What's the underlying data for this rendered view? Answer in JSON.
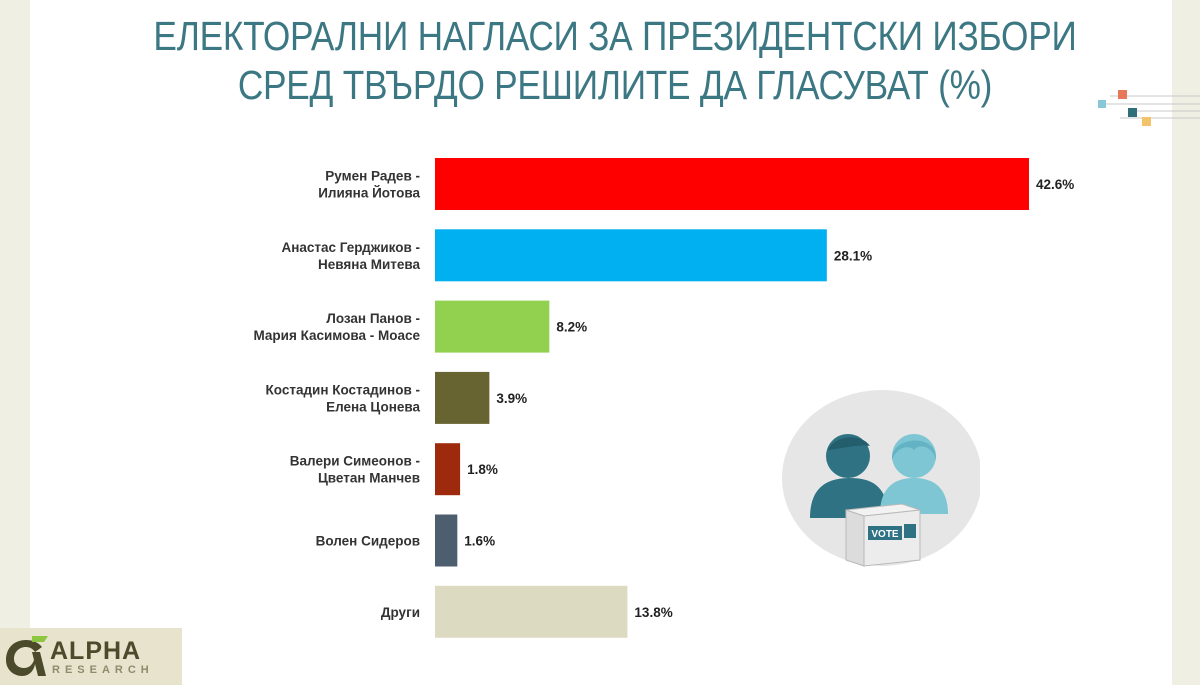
{
  "header": {
    "title_line1": "ЕЛЕКТОРАЛНИ НАГЛАСИ ЗА ПРЕЗИДЕНТСКИ ИЗБОРИ",
    "title_line2": "СРЕД ТВЪРДО РЕШИЛИТЕ ДА ГЛАСУВАТ (%)"
  },
  "chart_data": {
    "type": "bar",
    "orientation": "horizontal",
    "title": "ЕЛЕКТОРАЛНИ НАГЛАСИ ЗА ПРЕЗИДЕНТСКИ ИЗБОРИ СРЕД ТВЪРДО РЕШИЛИТЕ ДА ГЛАСУВАТ (%)",
    "categories": [
      [
        "Румен Радев -",
        "Илияна Йотова"
      ],
      [
        "Анастас Герджиков -",
        "Невяна Митева"
      ],
      [
        "Лозан Панов -",
        "Мария Касимова - Моасе"
      ],
      [
        "Костадин Костадинов -",
        "Елена Цонева"
      ],
      [
        "Валери Симеонов -",
        "Цветан Манчев"
      ],
      [
        "Волен Сидеров"
      ],
      [
        "Други"
      ]
    ],
    "values": [
      42.6,
      28.1,
      8.2,
      3.9,
      1.8,
      1.6,
      13.8
    ],
    "value_labels": [
      "42.6%",
      "28.1%",
      "8.2%",
      "3.9%",
      "1.8%",
      "1.6%",
      "13.8%"
    ],
    "colors": [
      "#ff0000",
      "#00b0f0",
      "#92d050",
      "#676432",
      "#9e2a0e",
      "#4d5e6e",
      "#dddac2"
    ],
    "xlim": [
      0,
      42.6
    ],
    "grid": false,
    "legend": "none"
  },
  "illustration": {
    "icon": "voters-ballot-box-icon",
    "ballot_text": "VOTE"
  },
  "logo": {
    "name": "ALPHA",
    "sub": "RESEARCH",
    "icon": "alpha-research-logo-icon"
  },
  "colors": {
    "title": "#3c7784",
    "background": "#efefe4",
    "voter_dark": "#2e7283",
    "voter_light": "#7ec6d4"
  }
}
